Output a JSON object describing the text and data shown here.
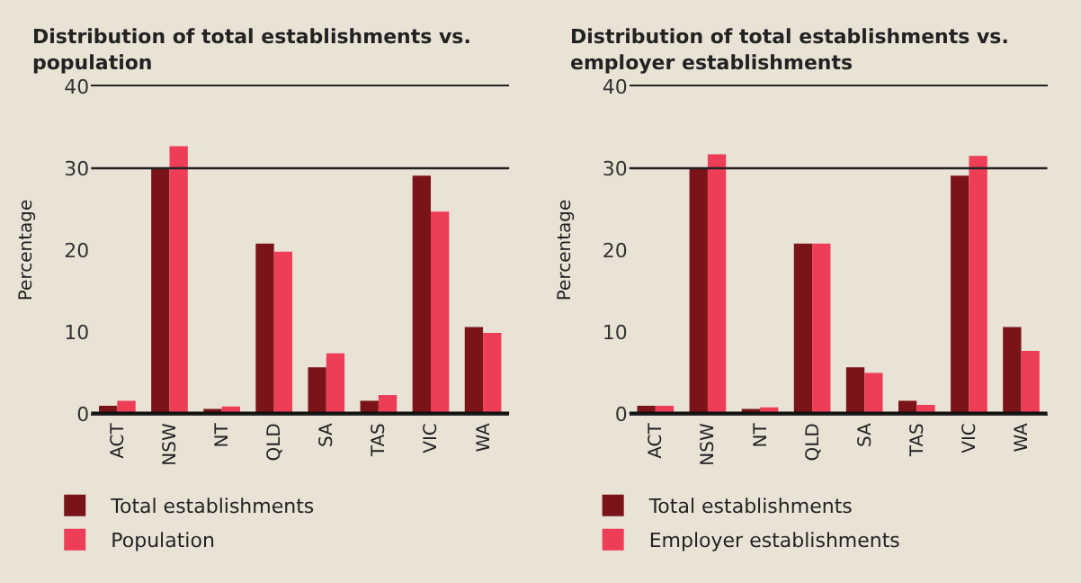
{
  "chart_data": [
    {
      "type": "bar",
      "title": "Distribution of total establishments vs. population",
      "ylabel": "Percentage",
      "categories": [
        "ACT",
        "NSW",
        "NT",
        "QLD",
        "SA",
        "TAS",
        "VIC",
        "WA"
      ],
      "series": [
        {
          "name": "Total establishments",
          "color": "#7a1418",
          "values": [
            1.0,
            30.0,
            0.6,
            20.8,
            5.7,
            1.6,
            29.1,
            10.6
          ]
        },
        {
          "name": "Population",
          "color": "#ee3d57",
          "values": [
            1.6,
            32.7,
            0.9,
            19.8,
            7.4,
            2.3,
            24.7,
            9.9
          ]
        }
      ],
      "ylim": [
        0,
        40
      ],
      "yticks": [
        0,
        10,
        20,
        30,
        40
      ],
      "grid": false,
      "legend": "bottom",
      "ref_lines": [
        {
          "axis": "y",
          "value": 30,
          "color": "#222222"
        }
      ]
    },
    {
      "type": "bar",
      "title": "Distribution of total establishments vs. employer establishments",
      "ylabel": "Percentage",
      "categories": [
        "ACT",
        "NSW",
        "NT",
        "QLD",
        "SA",
        "TAS",
        "VIC",
        "WA"
      ],
      "series": [
        {
          "name": "Total establishments",
          "color": "#7a1418",
          "values": [
            1.0,
            30.0,
            0.6,
            20.8,
            5.7,
            1.6,
            29.1,
            10.6
          ]
        },
        {
          "name": "Employer establishments",
          "color": "#ee3d57",
          "values": [
            1.0,
            31.7,
            0.8,
            20.8,
            5.0,
            1.1,
            31.5,
            7.7
          ]
        }
      ],
      "ylim": [
        0,
        40
      ],
      "yticks": [
        0,
        10,
        20,
        30,
        40
      ],
      "grid": false,
      "legend": "bottom",
      "ref_lines": [
        {
          "axis": "y",
          "value": 30,
          "color": "#222222"
        }
      ]
    }
  ]
}
